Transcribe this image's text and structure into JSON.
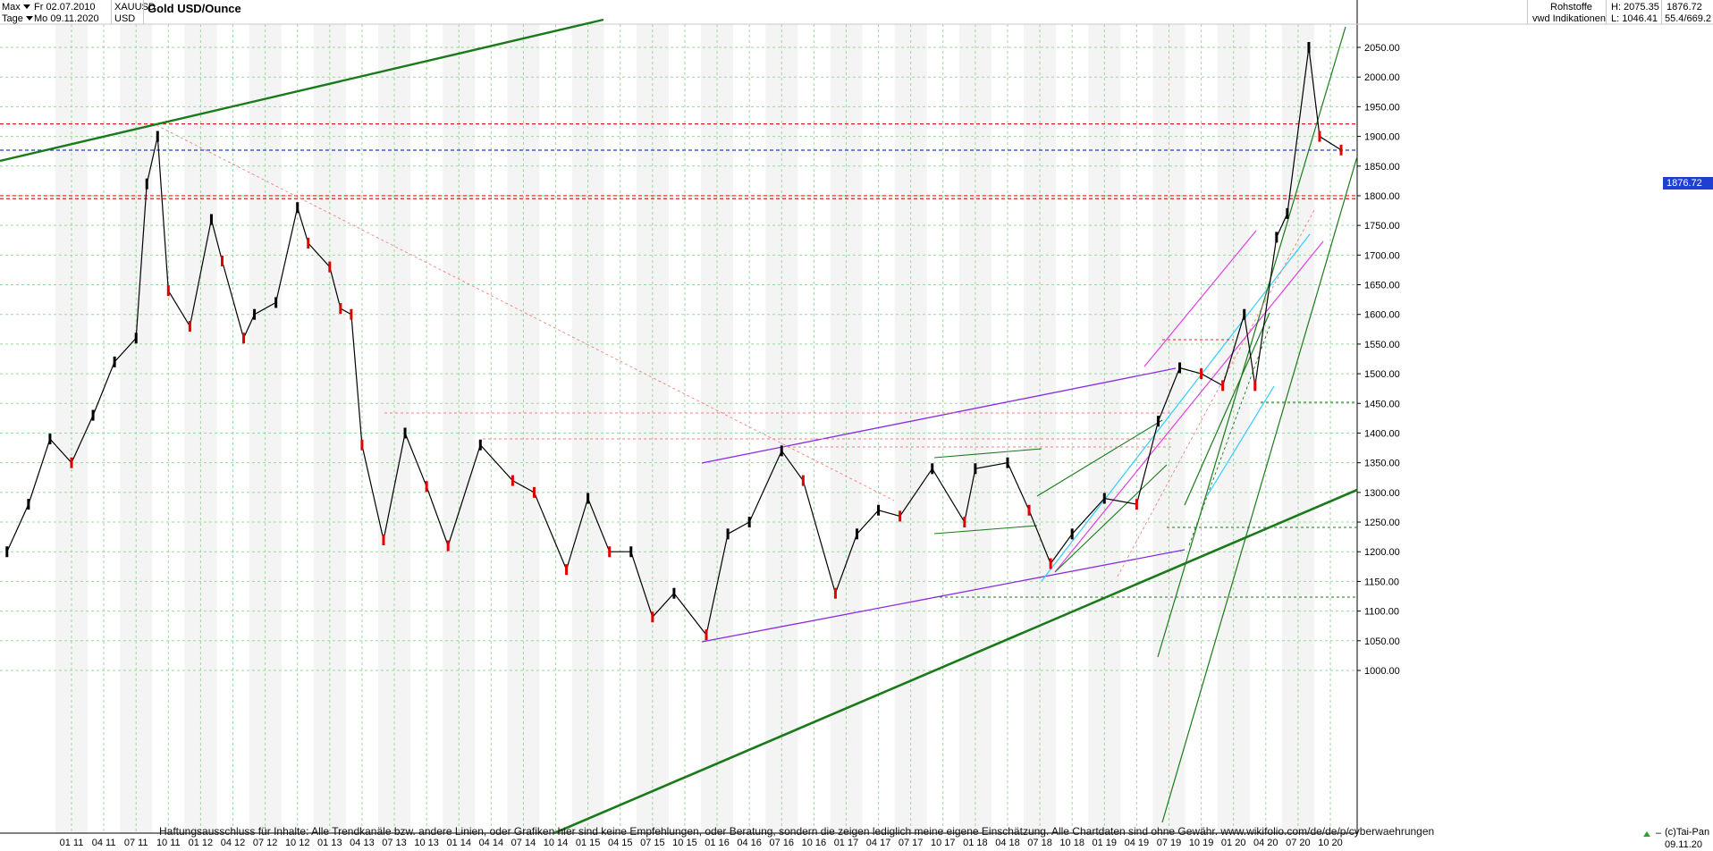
{
  "header": {
    "range_select": "Max",
    "interval_select": "Tage",
    "from_date": "Fr 02.07.2010",
    "to_date": "Mo 09.11.2020",
    "symbol": "XAUUSD",
    "currency": "USD",
    "title": "Gold USD/Ounce",
    "category": "Rohstoffe",
    "source": "vwd Indikationen",
    "high": "H: 2075.35",
    "low": "L: 1046.41",
    "last": "1876.72",
    "extra": "55.4/669.2"
  },
  "price_badge": "1876.72",
  "disclaimer": "Haftungsausschluss für Inhalte: Alle Trendkanäle bzw. andere Linien, oder Grafiken hier sind keine Empfehlungen, oder Beratung, sondern die zeigen lediglich meine eigene Einschätzung. Alle Chartdaten sind ohne Gewähr.  www.wikifolio.com/de/de/p/cyberwaehrungen",
  "copyright": "(c)Tai-Pan",
  "bottom_date": "09.11.20",
  "colors": {
    "up_candle": "#000000",
    "down_candle": "#e00000",
    "trend_green": "#1a7a1a",
    "purple": "#8a2be2",
    "magenta": "#e040e0",
    "cyan": "#33ccff",
    "red_dashed": "#e02020",
    "blue_dashed": "#1f3fd0",
    "grid": "#9bd99b"
  },
  "chart_data": {
    "type": "line",
    "title": "Gold USD/Ounce",
    "xlabel": "",
    "ylabel": "",
    "ylim": [
      1000,
      2100
    ],
    "grid": true,
    "y_ticks": [
      1000,
      1050,
      1100,
      1150,
      1200,
      1250,
      1300,
      1350,
      1400,
      1450,
      1500,
      1550,
      1600,
      1650,
      1700,
      1750,
      1800,
      1850,
      1900,
      1950,
      2000,
      2050
    ],
    "y_tick_labels": [
      "1000.00",
      "1050.00",
      "1100.00",
      "1150.00",
      "1200.00",
      "1250.00",
      "1300.00",
      "1350.00",
      "1400.00",
      "1450.00",
      "1500.00",
      "1550.00",
      "1600.00",
      "1650.00",
      "1700.00",
      "1750.00",
      "1800.00",
      "1850.00",
      "1900.00",
      "1950.00",
      "2000.00",
      "2050.00"
    ],
    "x_tick_labels": [
      "01 11",
      "04 11",
      "07 11",
      "10 11",
      "01 12",
      "04 12",
      "07 12",
      "10 12",
      "01 13",
      "04 13",
      "07 13",
      "10 13",
      "01 14",
      "04 14",
      "07 14",
      "10 14",
      "01 15",
      "04 15",
      "07 15",
      "10 15",
      "01 16",
      "04 16",
      "07 16",
      "10 16",
      "01 17",
      "04 17",
      "07 17",
      "10 17",
      "01 18",
      "04 18",
      "07 18",
      "10 18",
      "01 19",
      "04 19",
      "07 19",
      "10 19",
      "01 20",
      "04 20",
      "07 20",
      "10 20"
    ],
    "series": [
      {
        "x": [
          "2010-07",
          "2010-09",
          "2010-11",
          "2011-01",
          "2011-03",
          "2011-05",
          "2011-07",
          "2011-08",
          "2011-09",
          "2011-10",
          "2011-12",
          "2012-02",
          "2012-03",
          "2012-05",
          "2012-06",
          "2012-08",
          "2012-10",
          "2012-11",
          "2013-01",
          "2013-02",
          "2013-03",
          "2013-04",
          "2013-06",
          "2013-08",
          "2013-10",
          "2013-12",
          "2014-03",
          "2014-06",
          "2014-08",
          "2014-11",
          "2015-01",
          "2015-03",
          "2015-05",
          "2015-07",
          "2015-09",
          "2015-12",
          "2016-02",
          "2016-04",
          "2016-07",
          "2016-09",
          "2016-12",
          "2017-02",
          "2017-04",
          "2017-06",
          "2017-09",
          "2017-12",
          "2018-01",
          "2018-04",
          "2018-06",
          "2018-08",
          "2018-10",
          "2019-01",
          "2019-04",
          "2019-06",
          "2019-08",
          "2019-10",
          "2019-12",
          "2020-02",
          "2020-03",
          "2020-05",
          "2020-06",
          "2020-08",
          "2020-09",
          "2020-11"
        ],
        "y": [
          1200,
          1280,
          1390,
          1350,
          1430,
          1520,
          1560,
          1820,
          1900,
          1640,
          1580,
          1760,
          1690,
          1560,
          1600,
          1620,
          1780,
          1720,
          1680,
          1610,
          1600,
          1380,
          1220,
          1400,
          1310,
          1210,
          1380,
          1320,
          1300,
          1170,
          1290,
          1200,
          1200,
          1090,
          1130,
          1060,
          1230,
          1250,
          1370,
          1320,
          1130,
          1230,
          1270,
          1260,
          1340,
          1250,
          1340,
          1350,
          1270,
          1180,
          1230,
          1290,
          1280,
          1420,
          1510,
          1500,
          1480,
          1600,
          1480,
          1730,
          1770,
          2050,
          1900,
          1877
        ]
      }
    ],
    "horizontal_levels": [
      1921,
      1876.72,
      1800,
      1795
    ]
  }
}
